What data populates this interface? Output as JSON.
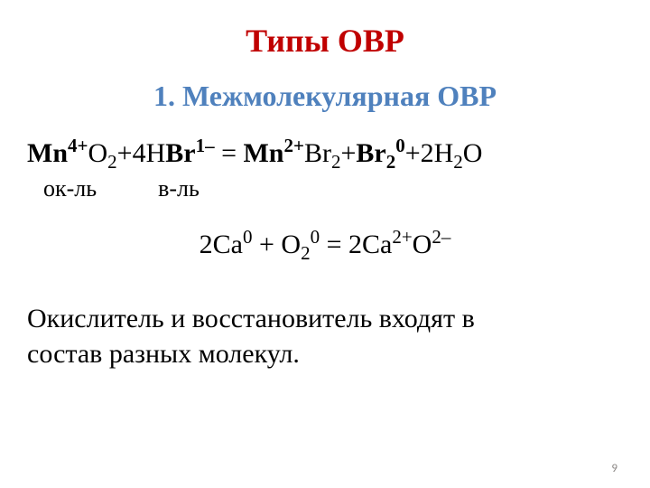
{
  "title": {
    "text": "Типы  ОВР",
    "color": "#c00000",
    "fontsize": 36
  },
  "subtitle": {
    "text": "1. Межмолекулярная  ОВР",
    "color": "#4f81bd",
    "fontsize": 32
  },
  "equation1": {
    "fontsize": 30,
    "color": "#000000",
    "parts": {
      "mn1": "Mn",
      "mn1_sup": "4+",
      "o1": "O",
      "o1_sub": "2",
      "plus1": "+",
      "coef1": "4",
      "h1": "H",
      "br1": "Br",
      "br1_sup": "1–",
      "eq": "  =  ",
      "mn2": "Mn",
      "mn2_sup": "2+",
      "br2": "Br",
      "br2_sub": "2",
      "plus2": "+",
      "br3": "Br",
      "br3_sub": "2",
      "br3_sup": "0",
      "plus3": "+",
      "coef2": "2",
      "h2": "H",
      "h2_sub": "2",
      "o2": "O"
    },
    "labels": {
      "ok": "ок-ль",
      "v": "в-ль",
      "fontsize": 26,
      "color": "#000000"
    }
  },
  "equation2": {
    "fontsize": 30,
    "color": "#000000",
    "parts": {
      "coef1": "2",
      "ca1": "Ca",
      "ca1_sup": "0",
      "plus1": " + ",
      "o1": "O",
      "o1_sub": "2",
      "o1_sup": "0",
      "eq": " = ",
      "coef2": "2",
      "ca2": "Ca",
      "ca2_sup": "2+",
      "o2": "O",
      "o2_sup": "2–"
    }
  },
  "description": {
    "line1": "Окислитель и восстановитель входят в",
    "line2": "состав разных молекул.",
    "fontsize": 30,
    "color": "#000000"
  },
  "page_number": "9"
}
